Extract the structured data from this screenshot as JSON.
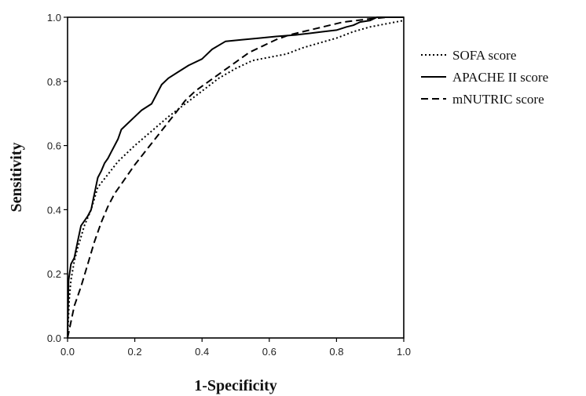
{
  "chart_data": {
    "type": "line",
    "xlabel": "1-Specificity",
    "ylabel": "Sensitivity",
    "xlim": [
      0.0,
      1.0
    ],
    "ylim": [
      0.0,
      1.0
    ],
    "xticks": [
      "0.0",
      "0.2",
      "0.4",
      "0.6",
      "0.8",
      "1.0"
    ],
    "yticks": [
      "0.0",
      "0.2",
      "0.4",
      "0.6",
      "0.8",
      "1.0"
    ],
    "grid": false,
    "legend_position": "right",
    "series": [
      {
        "name": "SOFA score",
        "style": "dotted",
        "x": [
          0.0,
          0.005,
          0.01,
          0.02,
          0.03,
          0.05,
          0.07,
          0.09,
          0.12,
          0.15,
          0.2,
          0.25,
          0.3,
          0.35,
          0.4,
          0.45,
          0.5,
          0.55,
          0.6,
          0.65,
          0.7,
          0.75,
          0.8,
          0.85,
          0.9,
          0.95,
          1.0
        ],
        "y": [
          0.0,
          0.12,
          0.18,
          0.24,
          0.28,
          0.35,
          0.4,
          0.47,
          0.51,
          0.55,
          0.6,
          0.645,
          0.69,
          0.73,
          0.77,
          0.81,
          0.84,
          0.865,
          0.875,
          0.885,
          0.905,
          0.92,
          0.935,
          0.955,
          0.97,
          0.98,
          0.99
        ]
      },
      {
        "name": "APACHE II score",
        "style": "solid",
        "x": [
          0.0,
          0.003,
          0.01,
          0.02,
          0.03,
          0.04,
          0.06,
          0.07,
          0.08,
          0.09,
          0.1,
          0.11,
          0.12,
          0.13,
          0.14,
          0.15,
          0.16,
          0.18,
          0.2,
          0.22,
          0.25,
          0.28,
          0.3,
          0.33,
          0.36,
          0.4,
          0.43,
          0.47,
          0.52,
          0.57,
          0.62,
          0.68,
          0.72,
          0.76,
          0.8,
          0.83,
          0.85,
          0.87,
          0.9,
          0.92,
          0.95,
          1.0
        ],
        "y": [
          0.0,
          0.18,
          0.23,
          0.25,
          0.3,
          0.35,
          0.38,
          0.4,
          0.45,
          0.5,
          0.52,
          0.545,
          0.56,
          0.58,
          0.6,
          0.62,
          0.65,
          0.67,
          0.69,
          0.71,
          0.73,
          0.79,
          0.81,
          0.83,
          0.85,
          0.87,
          0.9,
          0.925,
          0.93,
          0.935,
          0.94,
          0.945,
          0.95,
          0.955,
          0.96,
          0.97,
          0.975,
          0.985,
          0.99,
          1.0,
          1.0,
          1.0
        ]
      },
      {
        "name": "mNUTRIC score",
        "style": "dashed",
        "x": [
          0.0,
          0.01,
          0.02,
          0.04,
          0.06,
          0.08,
          0.1,
          0.12,
          0.14,
          0.16,
          0.18,
          0.2,
          0.23,
          0.26,
          0.29,
          0.32,
          0.35,
          0.38,
          0.42,
          0.46,
          0.5,
          0.54,
          0.58,
          0.62,
          0.66,
          0.7,
          0.74,
          0.78,
          0.82,
          0.86,
          0.9,
          0.95,
          1.0
        ],
        "y": [
          0.0,
          0.05,
          0.1,
          0.16,
          0.23,
          0.3,
          0.36,
          0.41,
          0.45,
          0.48,
          0.51,
          0.54,
          0.58,
          0.62,
          0.66,
          0.7,
          0.74,
          0.77,
          0.8,
          0.83,
          0.86,
          0.89,
          0.91,
          0.93,
          0.945,
          0.955,
          0.965,
          0.975,
          0.985,
          0.99,
          0.995,
          1.0,
          1.0
        ]
      }
    ]
  }
}
